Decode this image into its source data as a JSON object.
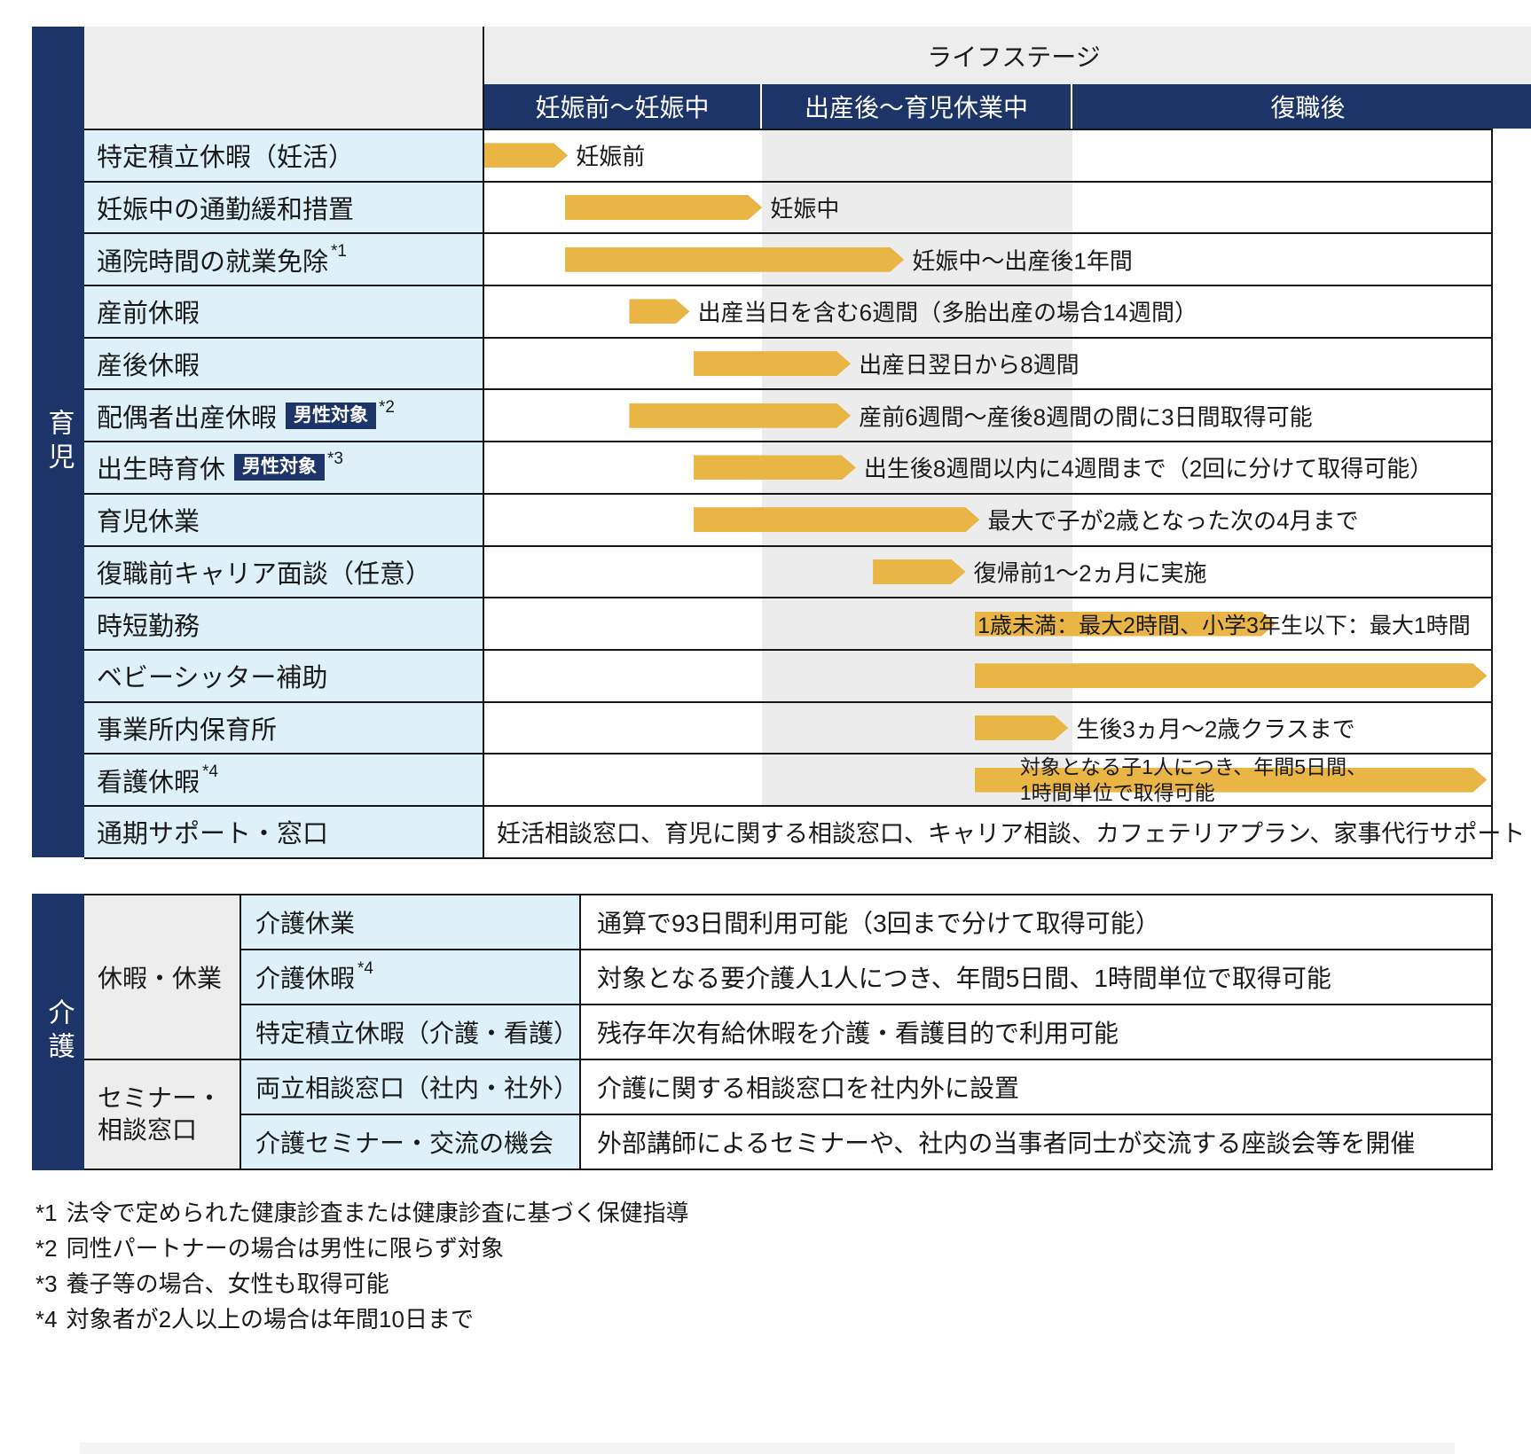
{
  "colors": {
    "navy": "#1d3469",
    "gold": "#e9b544",
    "light_blue": "#def0f8",
    "header_gray": "#ededed",
    "band_gray": "#ececec"
  },
  "top_table": {
    "sidebar_label": "育児",
    "header": {
      "lifestage": "ライフステージ",
      "columns": [
        "妊娠前〜妊娠中",
        "出産後〜育児休業中",
        "復職後"
      ]
    },
    "rows": [
      {
        "name": "特定積立休暇（妊活）",
        "bar": {
          "start": 0,
          "end": 8.3
        },
        "label": "妊娠前"
      },
      {
        "name": "妊娠中の通勤緩和措置",
        "bar": {
          "start": 8.0,
          "end": 27.6
        },
        "label": "妊娠中"
      },
      {
        "name": "通院時間の就業免除",
        "sup": "*1",
        "bar": {
          "start": 8.0,
          "end": 41.7
        },
        "label": "妊娠中〜出産後1年間"
      },
      {
        "name": "産前休暇",
        "bar": {
          "start": 14.4,
          "end": 20.4
        },
        "label": "出産当日を含む6週間（多胎出産の場合14週間）"
      },
      {
        "name": "産後休暇",
        "bar": {
          "start": 20.8,
          "end": 36.4
        },
        "label": "出産日翌日から8週間"
      },
      {
        "name": "配偶者出産休暇",
        "badge": "男性対象",
        "sup": "*2",
        "bar": {
          "start": 14.4,
          "end": 36.4
        },
        "label": "産前6週間〜産後8週間の間に3日間取得可能"
      },
      {
        "name": "出生時育休",
        "badge": "男性対象",
        "sup": "*3",
        "bar": {
          "start": 20.8,
          "end": 36.9
        },
        "label": "出生後8週間以内に4週間まで（2回に分けて取得可能）"
      },
      {
        "name": "育児休業",
        "bar": {
          "start": 20.8,
          "end": 49.2
        },
        "label": "最大で子が2歳となった次の4月まで"
      },
      {
        "name": "復職前キャリア面談（任意）",
        "bar": {
          "start": 38.6,
          "end": 47.8
        },
        "label": "復帰前1〜2ヵ月に実施"
      },
      {
        "name": "時短勤務",
        "bar": {
          "start": 48.7,
          "end": 78.6
        },
        "bar_text": "1歳未満：最大2時間、小学3年生以下：最大1時間"
      },
      {
        "name": "ベビーシッター補助",
        "bar": {
          "start": 48.7,
          "end": 99.6
        }
      },
      {
        "name": "事業所内保育所",
        "bar": {
          "start": 48.7,
          "end": 58.0
        },
        "label": "生後3ヵ月〜2歳クラスまで"
      },
      {
        "name": "看護休暇",
        "sup": "*4",
        "bar": {
          "start": 48.7,
          "end": 99.6
        },
        "label_line1": "対象となる子1人につき、年間5日間、",
        "label_line2": "1時間単位で取得可能"
      },
      {
        "name": "通期サポート・窓口",
        "full_text": "妊活相談窓口、育児に関する相談窓口、キャリア相談、カフェテリアプラン、家事代行サポート"
      }
    ]
  },
  "bottom_table": {
    "sidebar_label": "介護",
    "groups": [
      {
        "label": "休暇・休業"
      },
      {
        "label_line1": "セミナー・",
        "label_line2": "相談窓口"
      }
    ],
    "rows": [
      {
        "name": "介護休業",
        "desc": "通算で93日間利用可能（3回まで分けて取得可能）"
      },
      {
        "name": "介護休暇",
        "sup": "*4",
        "desc": "対象となる要介護人1人につき、年間5日間、1時間単位で取得可能"
      },
      {
        "name": "特定積立休暇（介護・看護）",
        "desc": "残存年次有給休暇を介護・看護目的で利用可能"
      },
      {
        "name": "両立相談窓口（社内・社外）",
        "desc": "介護に関する相談窓口を社内外に設置"
      },
      {
        "name": "介護セミナー・交流の機会",
        "desc": "外部講師によるセミナーや、社内の当事者同士が交流する座談会等を開催"
      }
    ]
  },
  "footnotes": [
    {
      "marker": "*1",
      "text": "法令で定められた健康診査または健康診査に基づく保健指導"
    },
    {
      "marker": "*2",
      "text": "同性パートナーの場合は男性に限らず対象"
    },
    {
      "marker": "*3",
      "text": "養子等の場合、女性も取得可能"
    },
    {
      "marker": "*4",
      "text": "対象者が2人以上の場合は年間10日まで"
    }
  ]
}
